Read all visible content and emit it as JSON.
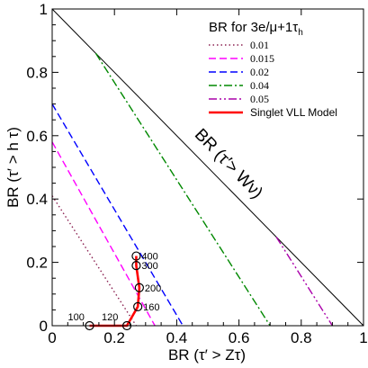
{
  "chart_data": {
    "type": "line",
    "xlabel": "BR (τ′ > Zτ)",
    "ylabel": "BR (τ′ > h τ)",
    "xlim": [
      0,
      1
    ],
    "ylim": [
      0,
      1
    ],
    "x_ticks": [
      "0",
      "0.2",
      "0.4",
      "0.6",
      "0.8",
      "1"
    ],
    "y_ticks": [
      "0",
      "0.2",
      "0.4",
      "0.6",
      "0.8",
      "1"
    ],
    "grid": false,
    "legend_title": "BR for 3e/μ+1τ",
    "legend_title_sub": "h",
    "legend_position": "top-right",
    "diagonal_label": "BR (τ′> Wν)",
    "diagonal": [
      [
        0,
        1
      ],
      [
        1,
        0
      ]
    ],
    "series": [
      {
        "name": "0.01",
        "color": "#8b2252",
        "dash": "dotted",
        "points": [
          [
            0,
            0.41
          ],
          [
            0.27,
            0
          ]
        ]
      },
      {
        "name": "0.015",
        "color": "#ff00ff",
        "dash": "dashed",
        "points": [
          [
            0,
            0.58
          ],
          [
            0.33,
            0
          ]
        ]
      },
      {
        "name": "0.02",
        "color": "#0000ff",
        "dash": "dashed",
        "points": [
          [
            0,
            0.7
          ],
          [
            0.42,
            0
          ]
        ]
      },
      {
        "name": "0.04",
        "color": "#008800",
        "dash": "dashdot",
        "points": [
          [
            0.14,
            0.86
          ],
          [
            0.7,
            0
          ]
        ]
      },
      {
        "name": "0.05",
        "color": "#aa00aa",
        "dash": "dashdotdot",
        "points": [
          [
            0.72,
            0.28
          ],
          [
            0.9,
            0
          ]
        ]
      },
      {
        "name": "Singlet VLL Model",
        "color": "#ff0000",
        "dash": "solid",
        "points": [
          [
            0.12,
            0
          ],
          [
            0.24,
            0
          ],
          [
            0.275,
            0.06
          ],
          [
            0.28,
            0.12
          ],
          [
            0.27,
            0.19
          ],
          [
            0.27,
            0.22
          ]
        ]
      }
    ],
    "mass_points": [
      {
        "label": "100",
        "x": 0.12,
        "y": 0.0
      },
      {
        "label": "120",
        "x": 0.24,
        "y": 0.0
      },
      {
        "label": "160",
        "x": 0.275,
        "y": 0.06
      },
      {
        "label": "200",
        "x": 0.28,
        "y": 0.12
      },
      {
        "label": "300",
        "x": 0.27,
        "y": 0.19
      },
      {
        "label": "400",
        "x": 0.27,
        "y": 0.22
      }
    ]
  }
}
